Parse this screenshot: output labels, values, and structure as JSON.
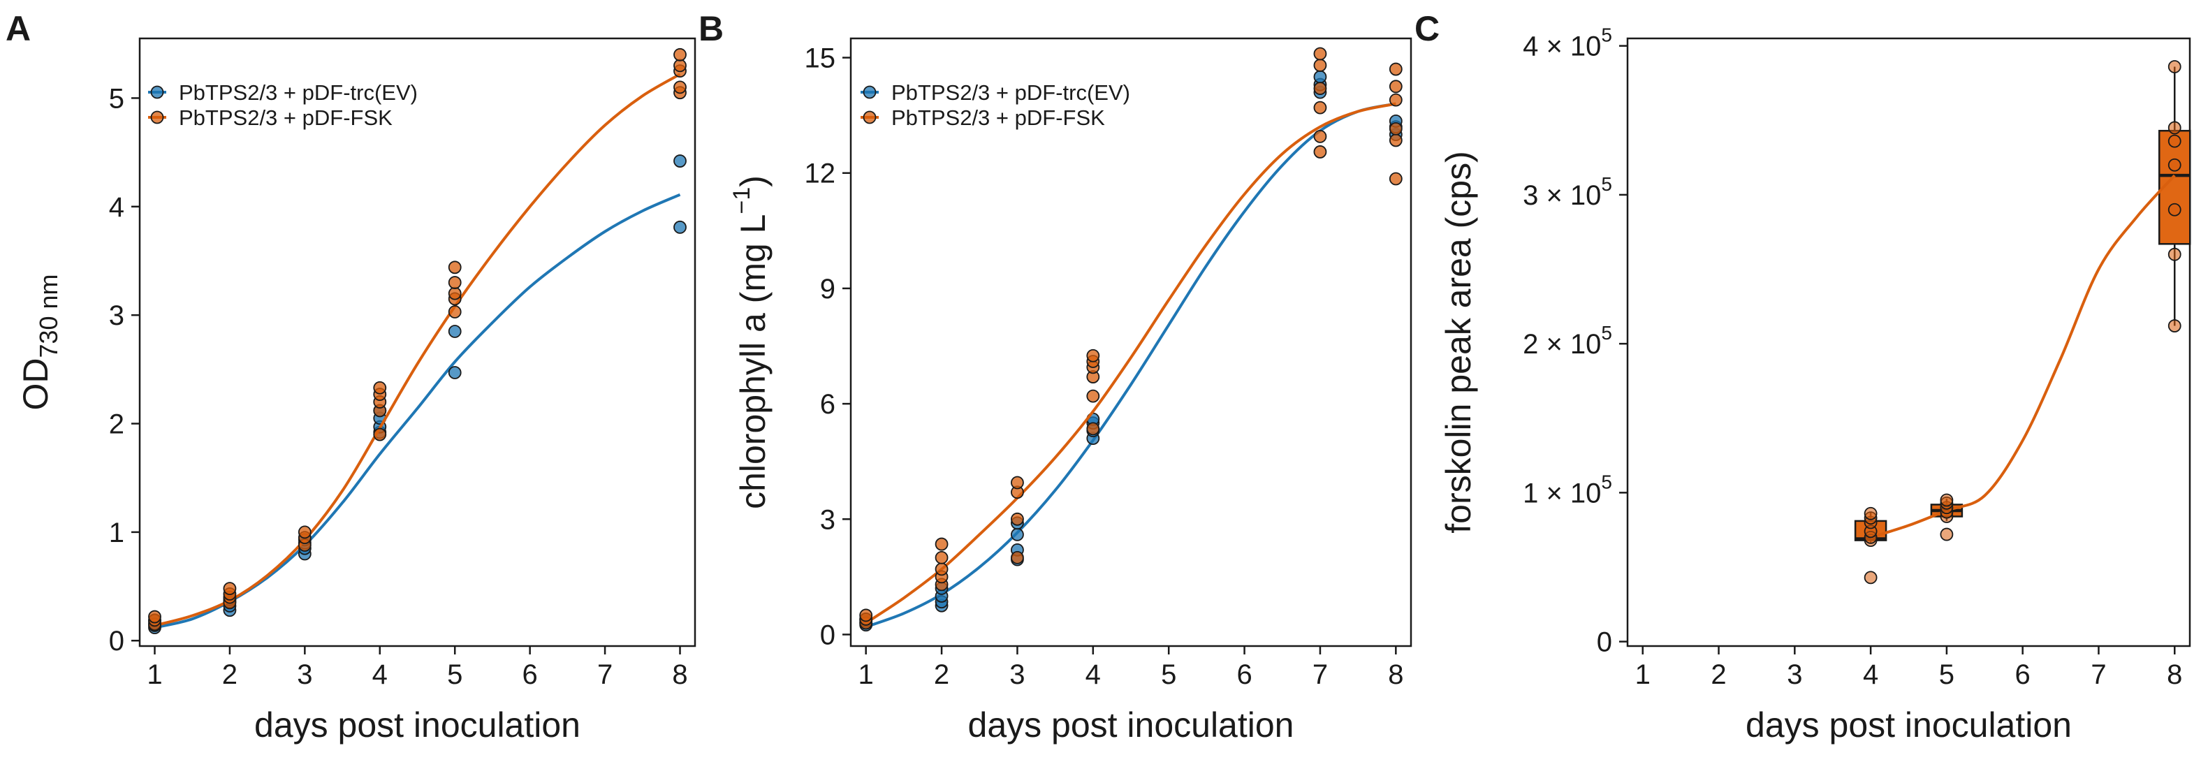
{
  "colors": {
    "ev": "#1f77b4",
    "fsk": "#d95f0e",
    "box_fill": "#e06714",
    "text": "#1a1a1a"
  },
  "chart_data": [
    {
      "id": "A",
      "panel_label": "A",
      "type": "scatter",
      "xlabel": "days post inoculation",
      "ylabel": "OD",
      "ylabel_sub": "730 nm",
      "xlim": [
        0.8,
        8.2
      ],
      "ylim": [
        -0.05,
        5.55
      ],
      "xticks": [
        1,
        2,
        3,
        4,
        5,
        6,
        7,
        8
      ],
      "yticks": [
        0,
        1,
        2,
        3,
        4,
        5
      ],
      "legend_position": "top-left",
      "series": [
        {
          "name": "PbTPS2/3 + pDF-trc(EV)",
          "color_key": "ev",
          "points": [
            [
              1,
              0.12
            ],
            [
              1,
              0.14
            ],
            [
              1,
              0.16
            ],
            [
              1,
              0.18
            ],
            [
              2,
              0.28
            ],
            [
              2,
              0.32
            ],
            [
              2,
              0.36
            ],
            [
              2,
              0.38
            ],
            [
              3,
              0.8
            ],
            [
              3,
              0.85
            ],
            [
              3,
              0.9
            ],
            [
              3,
              0.93
            ],
            [
              4,
              1.92
            ],
            [
              4,
              1.97
            ],
            [
              4,
              2.05
            ],
            [
              4,
              2.12
            ],
            [
              5,
              2.47
            ],
            [
              5,
              2.85
            ],
            [
              8,
              3.81
            ],
            [
              8,
              4.42
            ]
          ],
          "curve": [
            [
              1,
              0.12
            ],
            [
              1.5,
              0.2
            ],
            [
              2,
              0.36
            ],
            [
              2.5,
              0.58
            ],
            [
              3,
              0.88
            ],
            [
              3.5,
              1.27
            ],
            [
              4,
              1.72
            ],
            [
              4.5,
              2.14
            ],
            [
              5,
              2.57
            ],
            [
              5.5,
              2.93
            ],
            [
              6,
              3.26
            ],
            [
              6.5,
              3.53
            ],
            [
              7,
              3.77
            ],
            [
              7.5,
              3.96
            ],
            [
              8,
              4.11
            ]
          ]
        },
        {
          "name": "PbTPS2/3 + pDF-FSK",
          "color_key": "fsk",
          "points": [
            [
              1,
              0.15
            ],
            [
              1,
              0.19
            ],
            [
              1,
              0.22
            ],
            [
              2,
              0.35
            ],
            [
              2,
              0.4
            ],
            [
              2,
              0.43
            ],
            [
              2,
              0.48
            ],
            [
              3,
              0.88
            ],
            [
              3,
              0.95
            ],
            [
              3,
              1.0
            ],
            [
              4,
              1.9
            ],
            [
              4,
              2.12
            ],
            [
              4,
              2.2
            ],
            [
              4,
              2.27
            ],
            [
              4,
              2.33
            ],
            [
              5,
              3.03
            ],
            [
              5,
              3.15
            ],
            [
              5,
              3.2
            ],
            [
              5,
              3.3
            ],
            [
              5,
              3.44
            ],
            [
              8,
              5.05
            ],
            [
              8,
              5.1
            ],
            [
              8,
              5.25
            ],
            [
              8,
              5.3
            ],
            [
              8,
              5.4
            ]
          ],
          "curve": [
            [
              1,
              0.14
            ],
            [
              1.5,
              0.23
            ],
            [
              2,
              0.37
            ],
            [
              2.5,
              0.6
            ],
            [
              3,
              0.93
            ],
            [
              3.5,
              1.38
            ],
            [
              4,
              1.96
            ],
            [
              4.5,
              2.55
            ],
            [
              5,
              3.08
            ],
            [
              5.5,
              3.56
            ],
            [
              6,
              4.0
            ],
            [
              6.5,
              4.4
            ],
            [
              7,
              4.75
            ],
            [
              7.5,
              5.02
            ],
            [
              8,
              5.22
            ]
          ]
        }
      ]
    },
    {
      "id": "B",
      "panel_label": "B",
      "type": "scatter",
      "xlabel": "days post inoculation",
      "ylabel": "chlorophyll a (mg L",
      "ylabel_sup": "−1",
      "ylabel_end": ")",
      "xlim": [
        0.8,
        8.2
      ],
      "ylim": [
        -0.3,
        15.5
      ],
      "xticks": [
        1,
        2,
        3,
        4,
        5,
        6,
        7,
        8
      ],
      "yticks": [
        0,
        3,
        6,
        9,
        12,
        15
      ],
      "legend_position": "top-left",
      "series": [
        {
          "name": "PbTPS2/3 + pDF-trc(EV)",
          "color_key": "ev",
          "points": [
            [
              1,
              0.25
            ],
            [
              1,
              0.3
            ],
            [
              1,
              0.35
            ],
            [
              1,
              0.4
            ],
            [
              2,
              0.75
            ],
            [
              2,
              0.85
            ],
            [
              2,
              1.0
            ],
            [
              2,
              1.2
            ],
            [
              3,
              1.95
            ],
            [
              3,
              2.2
            ],
            [
              3,
              2.6
            ],
            [
              3,
              2.9
            ],
            [
              4,
              5.1
            ],
            [
              4,
              5.3
            ],
            [
              4,
              5.5
            ],
            [
              4,
              5.6
            ],
            [
              7,
              14.1
            ],
            [
              7,
              14.3
            ],
            [
              7,
              14.5
            ],
            [
              8,
              13.0
            ],
            [
              8,
              13.2
            ],
            [
              8,
              13.35
            ]
          ],
          "curve": [
            [
              1,
              0.2
            ],
            [
              1.5,
              0.55
            ],
            [
              2,
              1.05
            ],
            [
              2.5,
              1.75
            ],
            [
              3,
              2.65
            ],
            [
              3.5,
              3.75
            ],
            [
              4,
              5.05
            ],
            [
              4.5,
              6.5
            ],
            [
              5,
              8.05
            ],
            [
              5.5,
              9.6
            ],
            [
              6,
              11.0
            ],
            [
              6.5,
              12.2
            ],
            [
              7,
              13.1
            ],
            [
              7.5,
              13.6
            ],
            [
              8,
              13.8
            ]
          ]
        },
        {
          "name": "PbTPS2/3 + pDF-FSK",
          "color_key": "fsk",
          "points": [
            [
              1,
              0.3
            ],
            [
              1,
              0.4
            ],
            [
              1,
              0.5
            ],
            [
              2,
              1.3
            ],
            [
              2,
              1.5
            ],
            [
              2,
              1.7
            ],
            [
              2,
              2.0
            ],
            [
              2,
              2.35
            ],
            [
              3,
              2.0
            ],
            [
              3,
              3.0
            ],
            [
              3,
              3.7
            ],
            [
              3,
              3.95
            ],
            [
              4,
              5.35
            ],
            [
              4,
              6.2
            ],
            [
              4,
              6.7
            ],
            [
              4,
              6.95
            ],
            [
              4,
              7.1
            ],
            [
              4,
              7.25
            ],
            [
              7,
              12.55
            ],
            [
              7,
              12.95
            ],
            [
              7,
              13.7
            ],
            [
              7,
              14.2
            ],
            [
              7,
              14.8
            ],
            [
              7,
              15.1
            ],
            [
              8,
              11.85
            ],
            [
              8,
              12.85
            ],
            [
              8,
              13.15
            ],
            [
              8,
              13.9
            ],
            [
              8,
              14.25
            ],
            [
              8,
              14.7
            ]
          ],
          "curve": [
            [
              1,
              0.3
            ],
            [
              1.5,
              0.95
            ],
            [
              2,
              1.7
            ],
            [
              2.5,
              2.6
            ],
            [
              3,
              3.55
            ],
            [
              3.5,
              4.6
            ],
            [
              4,
              5.8
            ],
            [
              4.5,
              7.2
            ],
            [
              5,
              8.7
            ],
            [
              5.5,
              10.15
            ],
            [
              6,
              11.45
            ],
            [
              6.5,
              12.5
            ],
            [
              7,
              13.2
            ],
            [
              7.5,
              13.6
            ],
            [
              8,
              13.8
            ]
          ]
        }
      ]
    },
    {
      "id": "C",
      "panel_label": "C",
      "type": "box",
      "xlabel": "days post inoculation",
      "ylabel": "forskolin peak area (cps)",
      "xlim": [
        0.8,
        8.2
      ],
      "ylim": [
        -3000,
        405000
      ],
      "xticks": [
        1,
        2,
        3,
        4,
        5,
        6,
        7,
        8
      ],
      "yticks": [
        {
          "value": 0,
          "mant": "0",
          "exp": ""
        },
        {
          "value": 100000,
          "mant": "1 × 10",
          "exp": "5"
        },
        {
          "value": 200000,
          "mant": "2 × 10",
          "exp": "5"
        },
        {
          "value": 300000,
          "mant": "3 × 10",
          "exp": "5"
        },
        {
          "value": 400000,
          "mant": "4 × 10",
          "exp": "5"
        }
      ],
      "series": [
        {
          "name": "PbTPS2/3 + pDF-FSK",
          "color_key": "fsk",
          "boxes": [
            {
              "x": 4,
              "min": 66000,
              "q1": 68000,
              "median": 69000,
              "q3": 81000,
              "max": 87000
            },
            {
              "x": 5,
              "min": 81000,
              "q1": 84000,
              "median": 88000,
              "q3": 92000,
              "max": 96000
            },
            {
              "x": 8,
              "min": 212000,
              "q1": 267000,
              "median": 313000,
              "q3": 343000,
              "max": 386000
            }
          ],
          "points": [
            [
              4,
              43000
            ],
            [
              4,
              68000
            ],
            [
              4,
              70000
            ],
            [
              4,
              74000
            ],
            [
              4,
              80000
            ],
            [
              4,
              83000
            ],
            [
              4,
              86000
            ],
            [
              5,
              72000
            ],
            [
              5,
              84000
            ],
            [
              5,
              87000
            ],
            [
              5,
              90000
            ],
            [
              5,
              93000
            ],
            [
              5,
              95000
            ],
            [
              8,
              212000
            ],
            [
              8,
              260000
            ],
            [
              8,
              290000
            ],
            [
              8,
              320000
            ],
            [
              8,
              336000
            ],
            [
              8,
              345000
            ],
            [
              8,
              386000
            ]
          ],
          "curve": [
            [
              4,
              70000
            ],
            [
              4.5,
              78000
            ],
            [
              5,
              88000
            ],
            [
              5.5,
              98000
            ],
            [
              6,
              135000
            ],
            [
              6.5,
              190000
            ],
            [
              7,
              250000
            ],
            [
              7.5,
              285000
            ],
            [
              8,
              313000
            ]
          ]
        }
      ]
    }
  ]
}
